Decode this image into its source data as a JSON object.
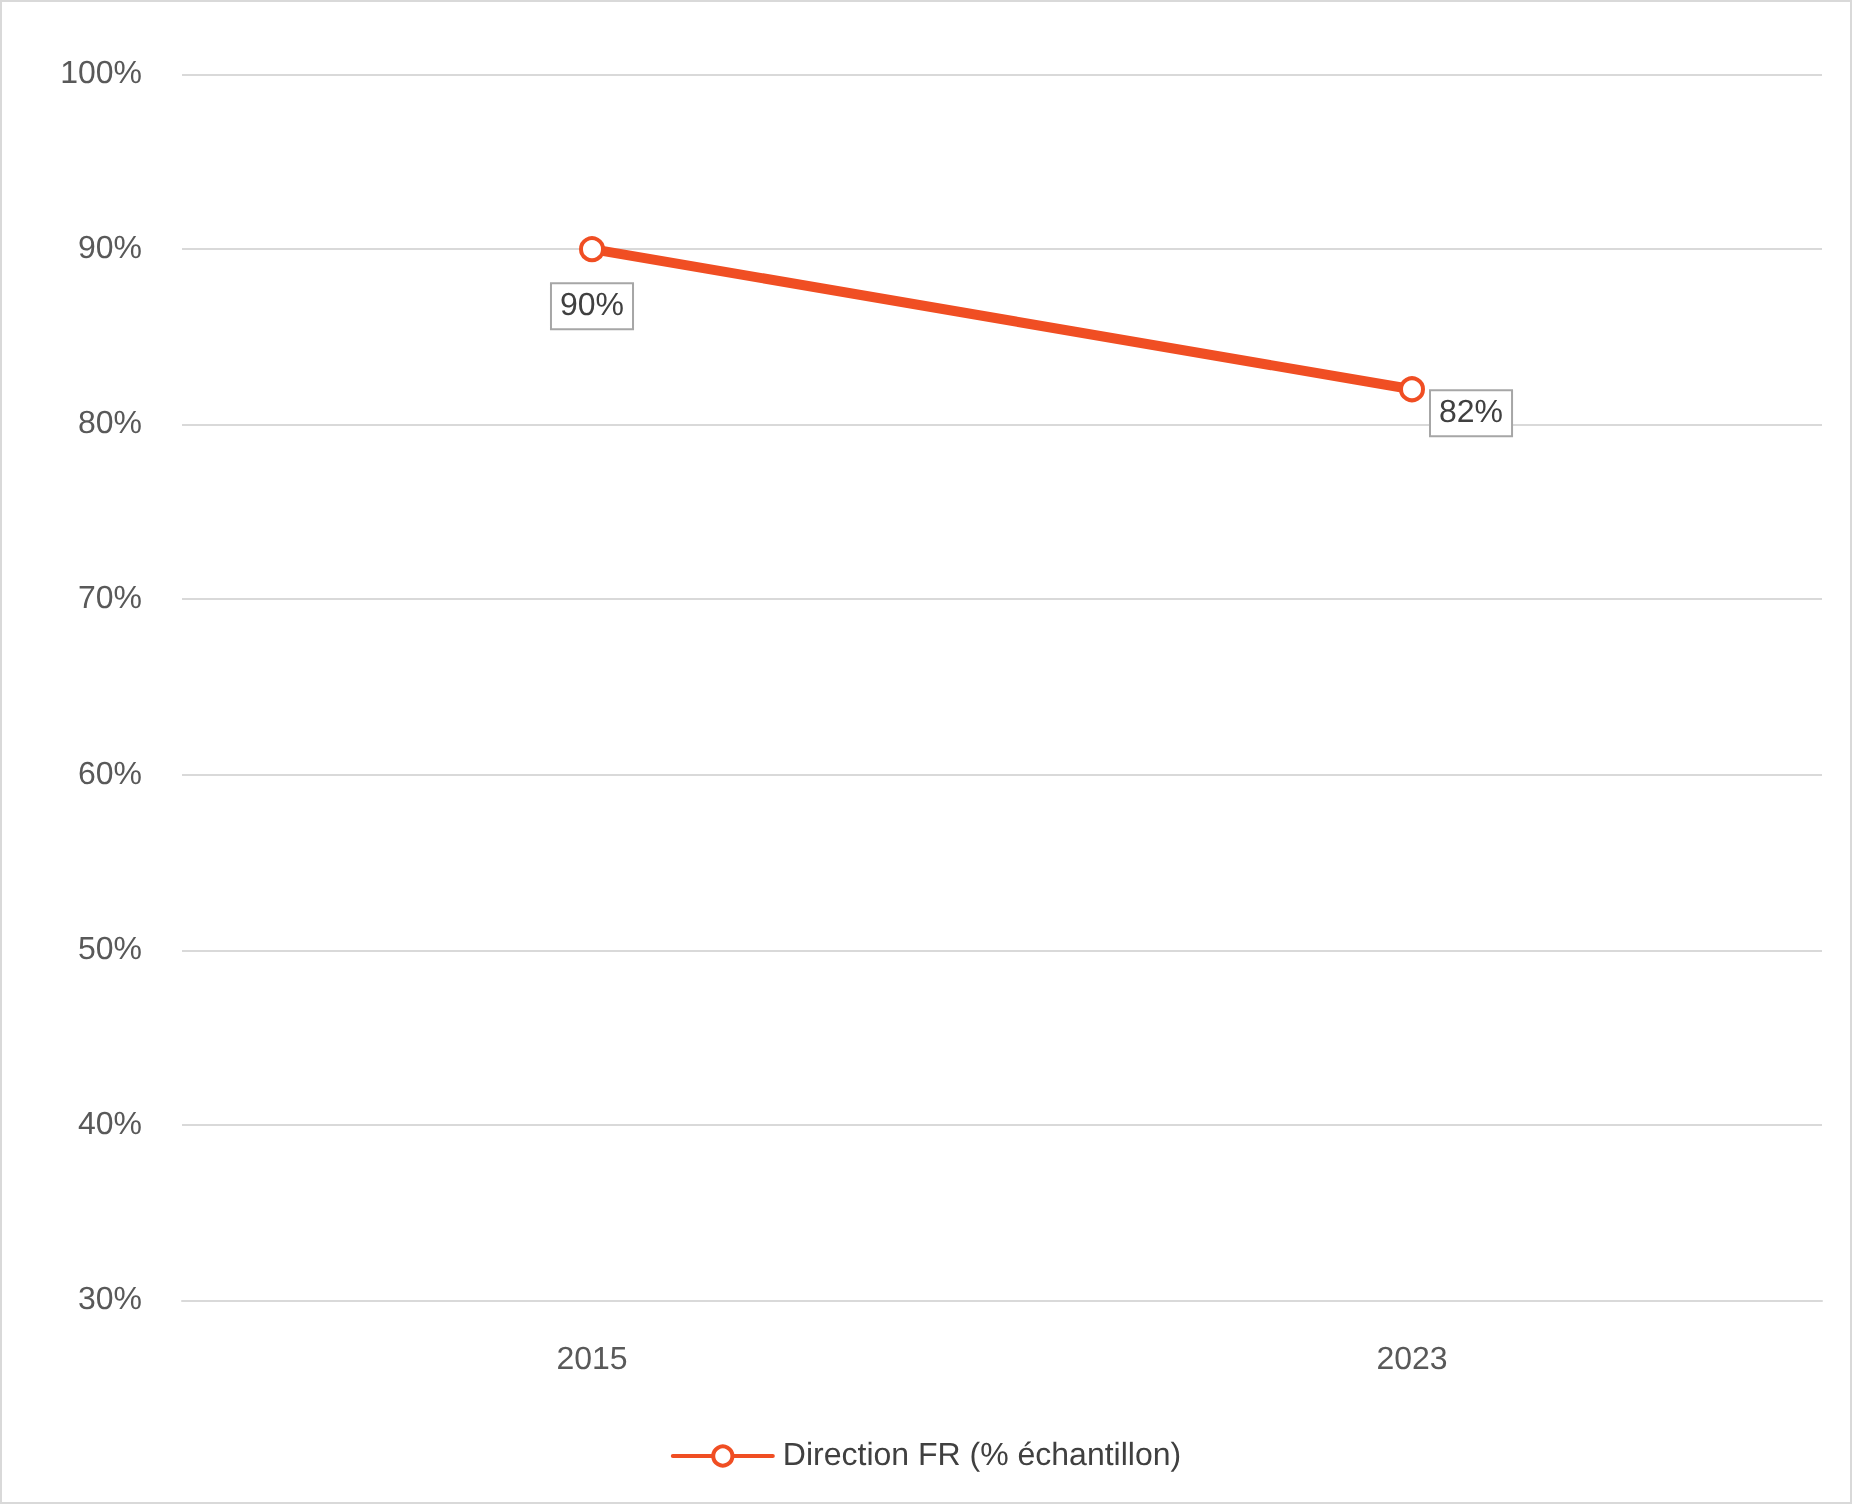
{
  "chart_data": {
    "type": "line",
    "categories": [
      "2015",
      "2023"
    ],
    "series": [
      {
        "name": "Direction FR (% échantillon)",
        "color": "#f04e23",
        "values": [
          90,
          82
        ],
        "value_labels": [
          "90%",
          "82%"
        ]
      }
    ],
    "ylim": [
      30,
      100
    ],
    "yticks": [
      {
        "value": 30,
        "label": "30%"
      },
      {
        "value": 40,
        "label": "40%"
      },
      {
        "value": 50,
        "label": "50%"
      },
      {
        "value": 60,
        "label": "60%"
      },
      {
        "value": 70,
        "label": "70%"
      },
      {
        "value": 80,
        "label": "80%"
      },
      {
        "value": 90,
        "label": "90%"
      },
      {
        "value": 100,
        "label": "100%"
      }
    ],
    "grid": "y",
    "legend": "bottom",
    "marker": "circle",
    "line_style": "solid"
  }
}
